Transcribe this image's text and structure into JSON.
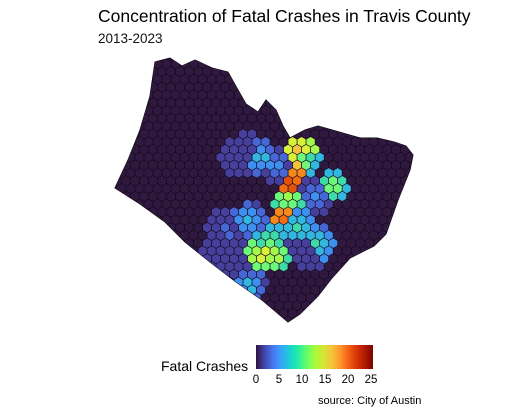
{
  "map": {
    "title": "Concentration of Fatal Crashes in Travis County",
    "subtitle": "2013-2023",
    "base_fill": "#30193f",
    "hex_stroke": "#14091c",
    "hotspots": [
      {
        "value": 24,
        "color": "#e25309"
      },
      {
        "value": 22,
        "color": "#f26d12"
      },
      {
        "value": 20,
        "color": "#f48a1c"
      },
      {
        "value": 18,
        "color": "#f5c33a"
      },
      {
        "value": 16,
        "color": "#d9f03a"
      },
      {
        "value": 14,
        "color": "#a4fa4c"
      },
      {
        "value": 12,
        "color": "#6cf97a"
      },
      {
        "value": 10,
        "color": "#3edba9"
      },
      {
        "value": 8,
        "color": "#32b7df"
      },
      {
        "value": 6,
        "color": "#3d8ff0"
      },
      {
        "value": 4,
        "color": "#4767d6"
      },
      {
        "value": 2,
        "color": "#463f9c"
      }
    ]
  },
  "legend": {
    "title": "Fatal Crashes",
    "ticks": [
      "0",
      "5",
      "10",
      "15",
      "20",
      "25"
    ],
    "gradient": [
      "#30123b",
      "#4145ab",
      "#4675ed",
      "#39a2fc",
      "#1bcfd4",
      "#24eca6",
      "#61fc6c",
      "#a4fc3b",
      "#d1e834",
      "#f3c63a",
      "#fe9b2d",
      "#f36315",
      "#d93806",
      "#b11901",
      "#7a0402"
    ]
  },
  "source": "source: City of Austin"
}
